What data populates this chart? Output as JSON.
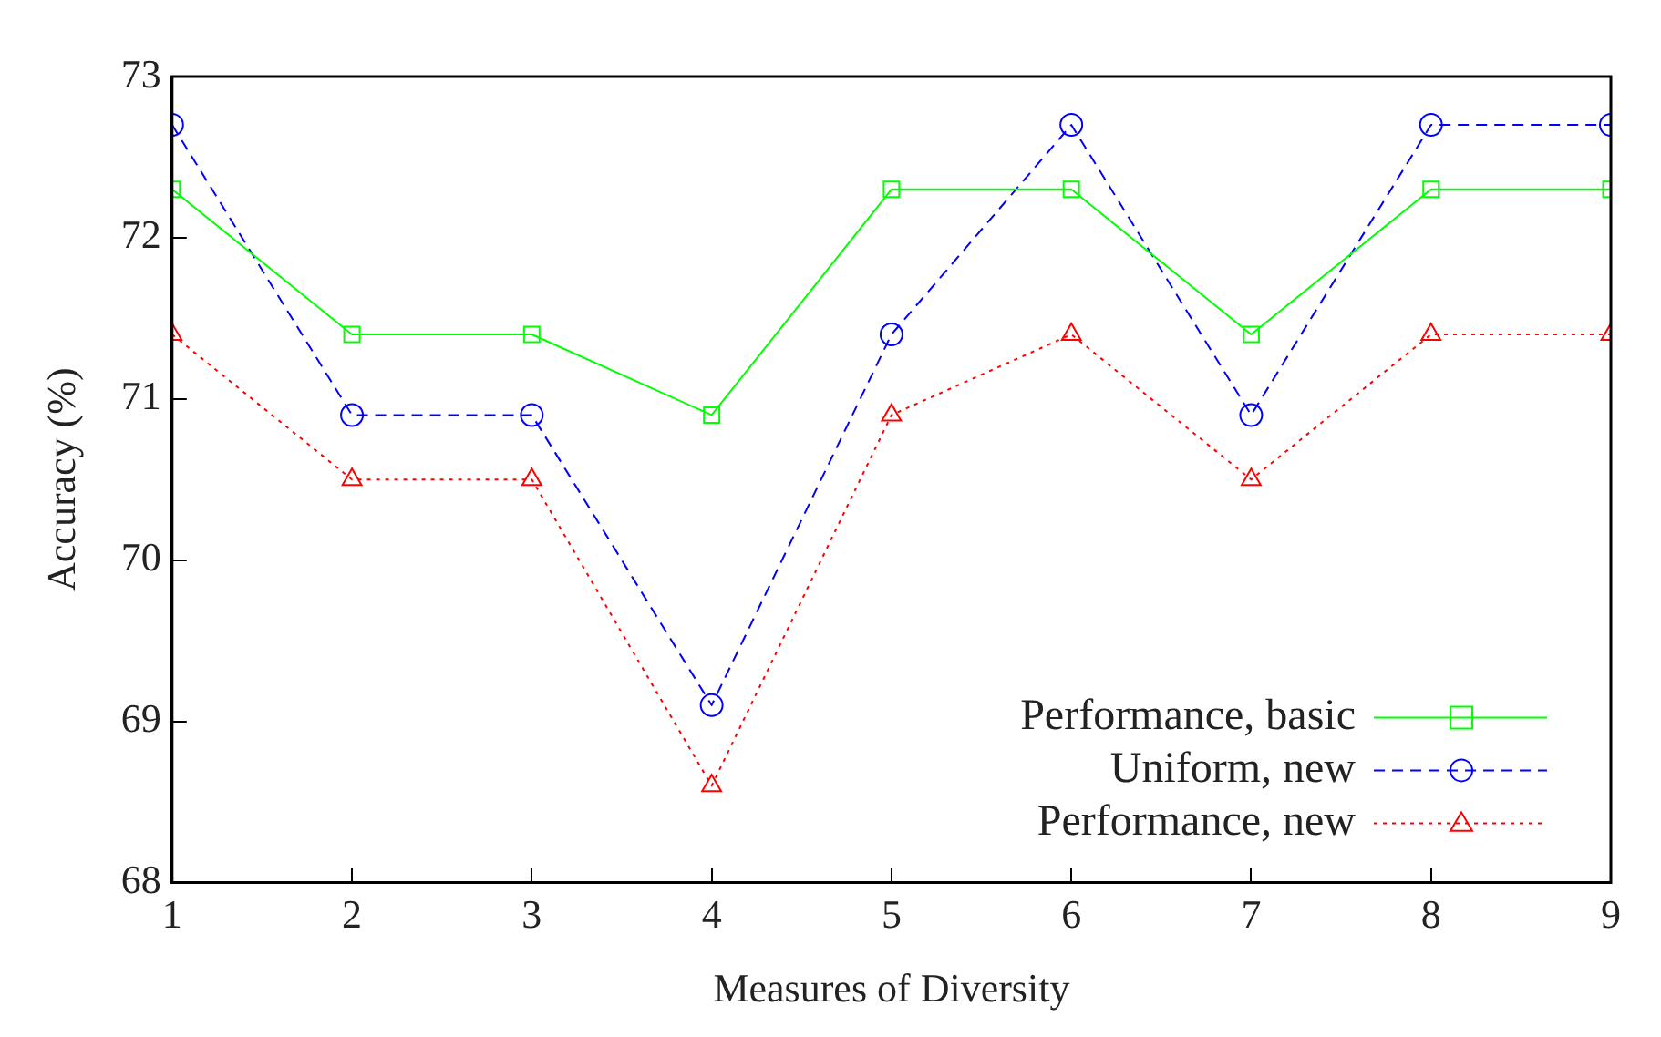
{
  "chart_data": {
    "type": "line",
    "xlabel": "Measures of Diversity",
    "ylabel": "Accuracy (%)",
    "x": [
      1,
      2,
      3,
      4,
      5,
      6,
      7,
      8,
      9
    ],
    "xlim": [
      1,
      9
    ],
    "xticks": [
      1,
      2,
      3,
      4,
      5,
      6,
      7,
      8,
      9
    ],
    "ylim": [
      68,
      73
    ],
    "yticks": [
      68,
      69,
      70,
      71,
      72,
      73
    ],
    "grid": false,
    "legend": "bottom right",
    "series": [
      {
        "name": "Performance, basic",
        "color": "#00ff00",
        "marker": "square",
        "line_style": "solid",
        "values": [
          72.3,
          71.4,
          71.4,
          70.9,
          72.3,
          72.3,
          71.4,
          72.3,
          72.3
        ]
      },
      {
        "name": "Uniform, new",
        "color": "#0000ff",
        "marker": "circle",
        "line_style": "dashed",
        "values": [
          72.7,
          70.9,
          70.9,
          69.1,
          71.4,
          72.7,
          70.9,
          72.7,
          72.7
        ]
      },
      {
        "name": "Performance, new",
        "color": "#ff0000",
        "marker": "triangle",
        "line_style": "dotted",
        "values": [
          71.4,
          70.5,
          70.5,
          68.6,
          70.9,
          71.4,
          70.5,
          71.4,
          71.4
        ]
      }
    ]
  }
}
